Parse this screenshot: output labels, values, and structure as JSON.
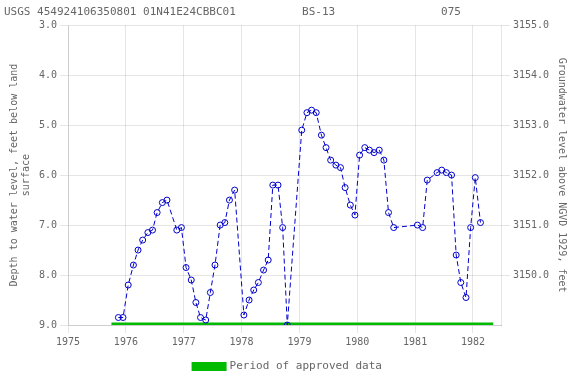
{
  "chart_data": {
    "type": "line",
    "title": "USGS 454924106350801 01N41E24CBBC01          BS-13                075",
    "y_label": "Depth to water level, feet below land\nsurface",
    "y2_label": "Groundwater level above NGVD 1929, feet",
    "xlim": [
      1975.0,
      1982.5
    ],
    "xticks": [
      1975,
      1976,
      1977,
      1978,
      1979,
      1980,
      1981,
      1982
    ],
    "ylim": [
      9.0,
      3.0
    ],
    "yticks": [
      {
        "value": 3.0,
        "label": "3.0"
      },
      {
        "value": 4.0,
        "label": "4.0"
      },
      {
        "value": 5.0,
        "label": "5.0"
      },
      {
        "value": 6.0,
        "label": "6.0"
      },
      {
        "value": 7.0,
        "label": "7.0"
      },
      {
        "value": 8.0,
        "label": "8.0"
      },
      {
        "value": 9.0,
        "label": "9.0"
      }
    ],
    "y2lim": [
      3149.0,
      3155.0
    ],
    "y2ticks": [
      {
        "value": 3150.0,
        "label": "3150.0"
      },
      {
        "value": 3151.0,
        "label": "3151.0"
      },
      {
        "value": 3152.0,
        "label": "3152.0"
      },
      {
        "value": 3153.0,
        "label": "3153.0"
      },
      {
        "value": 3154.0,
        "label": "3154.0"
      },
      {
        "value": 3155.0,
        "label": "3155.0"
      }
    ],
    "grid": true,
    "legend": "bottom",
    "series": [
      {
        "color": "#0000CC",
        "marker": "circle",
        "line_style": "dashed",
        "x": [
          1975.87,
          1975.95,
          1976.04,
          1976.13,
          1976.21,
          1976.29,
          1976.38,
          1976.46,
          1976.54,
          1976.63,
          1976.71,
          1976.88,
          1976.96,
          1977.04,
          1977.13,
          1977.21,
          1977.29,
          1977.38,
          1977.46,
          1977.54,
          1977.63,
          1977.71,
          1977.79,
          1977.88,
          1978.04,
          1978.13,
          1978.21,
          1978.29,
          1978.38,
          1978.46,
          1978.54,
          1978.63,
          1978.71,
          1978.79,
          1979.04,
          1979.13,
          1979.21,
          1979.29,
          1979.38,
          1979.46,
          1979.54,
          1979.63,
          1979.71,
          1979.79,
          1979.88,
          1979.96,
          1980.04,
          1980.13,
          1980.21,
          1980.29,
          1980.38,
          1980.46,
          1980.54,
          1980.63,
          1981.04,
          1981.13,
          1981.21,
          1981.38,
          1981.46,
          1981.54,
          1981.63,
          1981.71,
          1981.79,
          1981.88,
          1981.96,
          1982.04,
          1982.13
        ],
        "values": [
          8.85,
          8.85,
          8.2,
          7.8,
          7.5,
          7.3,
          7.15,
          7.1,
          6.75,
          6.55,
          6.5,
          7.1,
          7.05,
          7.85,
          8.1,
          8.55,
          8.85,
          8.9,
          8.35,
          7.8,
          7.0,
          6.95,
          6.5,
          6.3,
          8.8,
          8.5,
          8.3,
          8.15,
          7.9,
          7.7,
          6.2,
          6.2,
          7.05,
          9.0,
          5.1,
          4.75,
          4.7,
          4.75,
          5.2,
          5.45,
          5.7,
          5.8,
          5.85,
          6.25,
          6.6,
          6.8,
          5.6,
          5.45,
          5.5,
          5.55,
          5.5,
          5.7,
          6.75,
          7.05,
          7.0,
          7.05,
          6.1,
          5.95,
          5.9,
          5.95,
          6.0,
          7.6,
          8.15,
          8.45,
          7.05,
          6.05,
          6.95
        ]
      },
      {
        "name": "Period of approved data",
        "color": "#00BB00",
        "marker": "none",
        "line_style": "solid",
        "x": [
          1975.75,
          1982.35
        ],
        "values": [
          9.0,
          9.0
        ]
      }
    ]
  }
}
